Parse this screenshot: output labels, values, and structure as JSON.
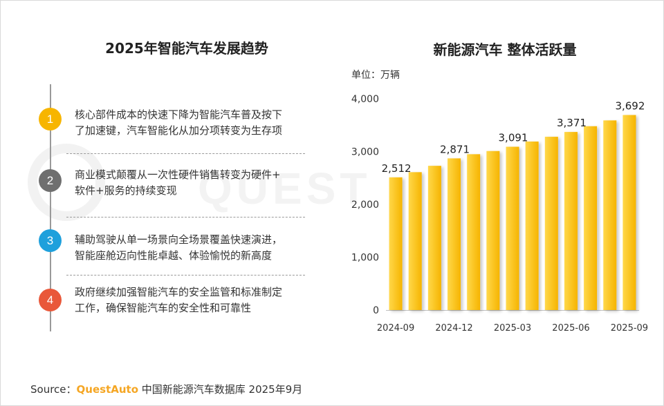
{
  "left_panel": {
    "title": "2025年智能汽车发展趋势",
    "items": [
      {
        "number": "1",
        "color": "#f7b500",
        "line1": "核心部件成本的快速下降为智能汽车普及按下",
        "line2": "了加速键，汽车智能化从加分项转变为生存项"
      },
      {
        "number": "2",
        "color": "#6f6f6f",
        "line1": "商业模式颠覆从一次性硬件销售转变为硬件+",
        "line2": "软件+服务的持续变现"
      },
      {
        "number": "3",
        "color": "#1ea0dc",
        "line1": "辅助驾驶从单一场景向全场景覆盖快速演进，",
        "line2": "智能座舱迈向性能卓越、体验愉悦的新高度"
      },
      {
        "number": "4",
        "color": "#e9583a",
        "line1": "政府继续加强智能汽车的安全监管和标准制定",
        "line2": "工作，确保智能汽车的安全性和可靠性"
      }
    ]
  },
  "watermark": {
    "text": "QUEST"
  },
  "chart_data": {
    "type": "bar",
    "title": "新能源汽车 整体活跃量",
    "unit": "单位：万辆",
    "x": [
      "2024-09",
      "2024-10",
      "2024-11",
      "2024-12",
      "2025-01",
      "2025-02",
      "2025-03",
      "2025-04",
      "2025-05",
      "2025-06",
      "2025-07",
      "2025-08",
      "2025-09"
    ],
    "x_tick_labels": [
      "2024-09",
      "",
      "",
      "2024-12",
      "",
      "",
      "2025-03",
      "",
      "",
      "2025-06",
      "",
      "",
      "2025-09"
    ],
    "values": [
      2512,
      2610,
      2730,
      2871,
      2950,
      3010,
      3091,
      3190,
      3280,
      3371,
      3480,
      3590,
      3692
    ],
    "data_labels": [
      "2,512",
      "",
      "",
      "2,871",
      "",
      "",
      "3,091",
      "",
      "",
      "3,371",
      "",
      "",
      "3,692"
    ],
    "y_ticks": [
      "0",
      "1,000",
      "2,000",
      "3,000",
      "4,000"
    ],
    "ylim": [
      0,
      4000
    ],
    "grid": false,
    "bar_color": "#f9c80e",
    "bar_color_dark": "#f2a900"
  },
  "source": {
    "prefix": "Source：",
    "brand": "QuestAuto",
    "text": "中国新能源汽车数据库 2025年9月"
  }
}
